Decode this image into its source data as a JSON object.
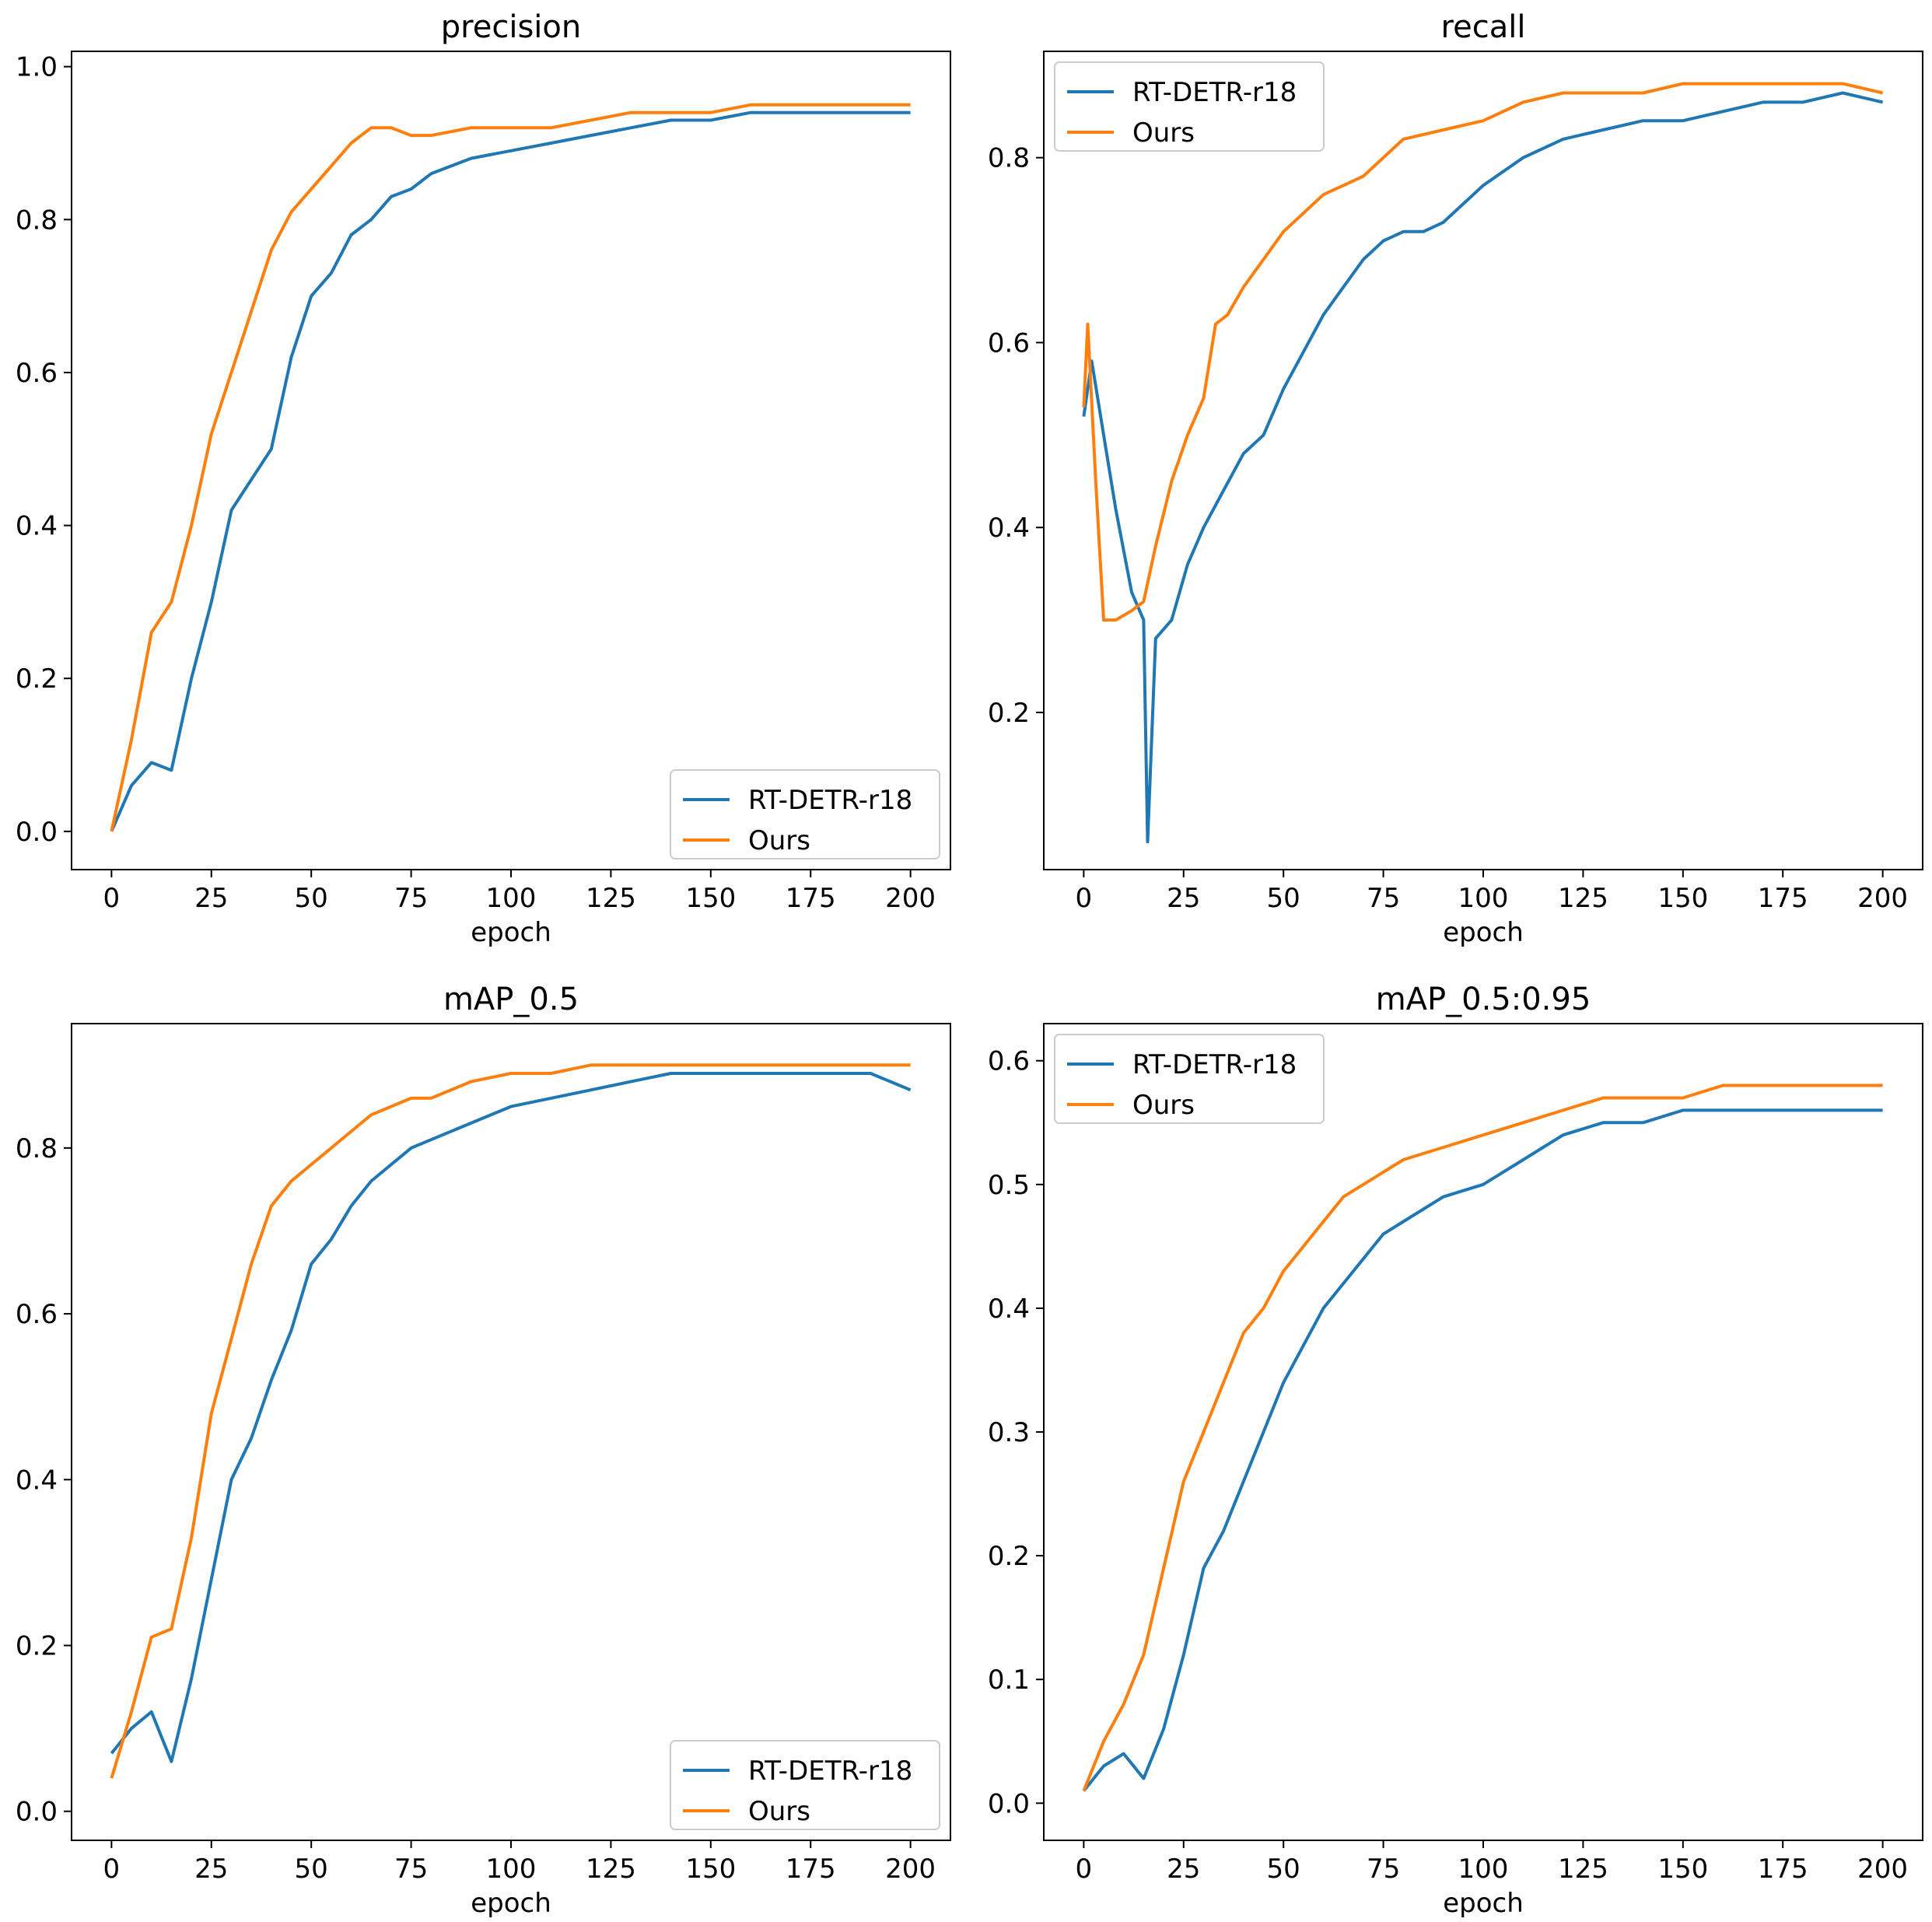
{
  "colors": {
    "rtdetr": "#1f77b4",
    "ours": "#ff7f0e"
  },
  "chart_data": [
    {
      "type": "line",
      "title": "precision",
      "xlabel": "epoch",
      "ylabel": "",
      "xlim": [
        -10,
        210
      ],
      "ylim": [
        -0.05,
        1.02
      ],
      "xticks": [
        0,
        25,
        50,
        75,
        100,
        125,
        150,
        175,
        200
      ],
      "yticks": [
        0.0,
        0.2,
        0.4,
        0.6,
        0.8,
        1.0
      ],
      "ytick_labels": [
        "0.0",
        "0.2",
        "0.4",
        "0.6",
        "0.8",
        "1.0"
      ],
      "legend": "lower right",
      "series": [
        {
          "name": "RT-DETR-r18",
          "x": [
            0,
            5,
            10,
            15,
            20,
            25,
            30,
            35,
            40,
            45,
            50,
            55,
            60,
            65,
            70,
            75,
            80,
            90,
            100,
            110,
            120,
            130,
            140,
            150,
            160,
            170,
            180,
            190,
            200
          ],
          "values": [
            0.0,
            0.06,
            0.09,
            0.08,
            0.2,
            0.3,
            0.42,
            0.46,
            0.5,
            0.62,
            0.7,
            0.73,
            0.78,
            0.8,
            0.83,
            0.84,
            0.86,
            0.88,
            0.89,
            0.9,
            0.91,
            0.92,
            0.93,
            0.93,
            0.94,
            0.94,
            0.94,
            0.94,
            0.94
          ]
        },
        {
          "name": "Ours",
          "x": [
            0,
            5,
            10,
            15,
            20,
            25,
            30,
            35,
            40,
            45,
            50,
            55,
            60,
            65,
            70,
            75,
            80,
            90,
            100,
            110,
            120,
            130,
            140,
            150,
            160,
            170,
            180,
            190,
            200
          ],
          "values": [
            0.0,
            0.12,
            0.26,
            0.3,
            0.4,
            0.52,
            0.6,
            0.68,
            0.76,
            0.81,
            0.84,
            0.87,
            0.9,
            0.92,
            0.92,
            0.91,
            0.91,
            0.92,
            0.92,
            0.92,
            0.93,
            0.94,
            0.94,
            0.94,
            0.95,
            0.95,
            0.95,
            0.95,
            0.95
          ]
        }
      ]
    },
    {
      "type": "line",
      "title": "recall",
      "xlabel": "epoch",
      "ylabel": "",
      "xlim": [
        -10,
        210
      ],
      "ylim": [
        0.03,
        0.915
      ],
      "xticks": [
        0,
        25,
        50,
        75,
        100,
        125,
        150,
        175,
        200
      ],
      "yticks": [
        0.2,
        0.4,
        0.6,
        0.8
      ],
      "ytick_labels": [
        "0.2",
        "0.4",
        "0.6",
        "0.8"
      ],
      "legend": "upper left",
      "series": [
        {
          "name": "RT-DETR-r18",
          "x": [
            0,
            2,
            5,
            8,
            12,
            15,
            16,
            18,
            22,
            26,
            30,
            35,
            40,
            45,
            50,
            55,
            60,
            65,
            70,
            75,
            80,
            85,
            90,
            100,
            110,
            120,
            130,
            140,
            150,
            160,
            170,
            180,
            190,
            200
          ],
          "values": [
            0.52,
            0.58,
            0.5,
            0.42,
            0.33,
            0.3,
            0.06,
            0.28,
            0.3,
            0.36,
            0.4,
            0.44,
            0.48,
            0.5,
            0.55,
            0.59,
            0.63,
            0.66,
            0.69,
            0.71,
            0.72,
            0.72,
            0.73,
            0.77,
            0.8,
            0.82,
            0.83,
            0.84,
            0.84,
            0.85,
            0.86,
            0.86,
            0.87,
            0.86
          ]
        },
        {
          "name": "Ours",
          "x": [
            0,
            1,
            3,
            5,
            8,
            12,
            15,
            18,
            22,
            26,
            30,
            33,
            36,
            40,
            45,
            50,
            55,
            60,
            65,
            70,
            75,
            80,
            90,
            100,
            110,
            120,
            130,
            140,
            150,
            160,
            170,
            180,
            190,
            200
          ],
          "values": [
            0.53,
            0.62,
            0.45,
            0.3,
            0.3,
            0.31,
            0.32,
            0.38,
            0.45,
            0.5,
            0.54,
            0.62,
            0.63,
            0.66,
            0.69,
            0.72,
            0.74,
            0.76,
            0.77,
            0.78,
            0.8,
            0.82,
            0.83,
            0.84,
            0.86,
            0.87,
            0.87,
            0.87,
            0.88,
            0.88,
            0.88,
            0.88,
            0.88,
            0.87
          ]
        }
      ]
    },
    {
      "type": "line",
      "title": "mAP_0.5",
      "xlabel": "epoch",
      "ylabel": "",
      "xlim": [
        -10,
        210
      ],
      "ylim": [
        -0.035,
        0.95
      ],
      "xticks": [
        0,
        25,
        50,
        75,
        100,
        125,
        150,
        175,
        200
      ],
      "yticks": [
        0.0,
        0.2,
        0.4,
        0.6,
        0.8
      ],
      "ytick_labels": [
        "0.0",
        "0.2",
        "0.4",
        "0.6",
        "0.8"
      ],
      "legend": "lower right",
      "series": [
        {
          "name": "RT-DETR-r18",
          "x": [
            0,
            5,
            10,
            15,
            20,
            25,
            30,
            35,
            40,
            45,
            50,
            55,
            60,
            65,
            70,
            75,
            80,
            90,
            100,
            110,
            120,
            130,
            140,
            150,
            160,
            170,
            180,
            190,
            200
          ],
          "values": [
            0.07,
            0.1,
            0.12,
            0.06,
            0.16,
            0.28,
            0.4,
            0.45,
            0.52,
            0.58,
            0.66,
            0.69,
            0.73,
            0.76,
            0.78,
            0.8,
            0.81,
            0.83,
            0.85,
            0.86,
            0.87,
            0.88,
            0.89,
            0.89,
            0.89,
            0.89,
            0.89,
            0.89,
            0.87
          ]
        },
        {
          "name": "Ours",
          "x": [
            0,
            5,
            10,
            15,
            20,
            25,
            30,
            35,
            40,
            45,
            50,
            55,
            60,
            65,
            70,
            75,
            80,
            90,
            100,
            110,
            120,
            130,
            140,
            150,
            160,
            170,
            180,
            190,
            200
          ],
          "values": [
            0.04,
            0.12,
            0.21,
            0.22,
            0.33,
            0.48,
            0.57,
            0.66,
            0.73,
            0.76,
            0.78,
            0.8,
            0.82,
            0.84,
            0.85,
            0.86,
            0.86,
            0.88,
            0.89,
            0.89,
            0.9,
            0.9,
            0.9,
            0.9,
            0.9,
            0.9,
            0.9,
            0.9,
            0.9
          ]
        }
      ]
    },
    {
      "type": "line",
      "title": "mAP_0.5:0.95",
      "xlabel": "epoch",
      "ylabel": "",
      "xlim": [
        -10,
        210
      ],
      "ylim": [
        -0.03,
        0.63
      ],
      "xticks": [
        0,
        25,
        50,
        75,
        100,
        125,
        150,
        175,
        200
      ],
      "yticks": [
        0.0,
        0.1,
        0.2,
        0.3,
        0.4,
        0.5,
        0.6
      ],
      "ytick_labels": [
        "0.0",
        "0.1",
        "0.2",
        "0.3",
        "0.4",
        "0.5",
        "0.6"
      ],
      "legend": "upper left",
      "series": [
        {
          "name": "RT-DETR-r18",
          "x": [
            0,
            5,
            10,
            15,
            20,
            25,
            30,
            35,
            40,
            45,
            50,
            55,
            60,
            65,
            70,
            75,
            80,
            90,
            100,
            110,
            120,
            130,
            140,
            150,
            160,
            170,
            180,
            190,
            200
          ],
          "values": [
            0.01,
            0.03,
            0.04,
            0.02,
            0.06,
            0.12,
            0.19,
            0.22,
            0.26,
            0.3,
            0.34,
            0.37,
            0.4,
            0.42,
            0.44,
            0.46,
            0.47,
            0.49,
            0.5,
            0.52,
            0.54,
            0.55,
            0.55,
            0.56,
            0.56,
            0.56,
            0.56,
            0.56,
            0.56
          ]
        },
        {
          "name": "Ours",
          "x": [
            0,
            5,
            10,
            15,
            20,
            25,
            30,
            35,
            40,
            45,
            50,
            55,
            60,
            65,
            70,
            75,
            80,
            90,
            100,
            110,
            120,
            130,
            140,
            150,
            160,
            170,
            180,
            190,
            200
          ],
          "values": [
            0.01,
            0.05,
            0.08,
            0.12,
            0.19,
            0.26,
            0.3,
            0.34,
            0.38,
            0.4,
            0.43,
            0.45,
            0.47,
            0.49,
            0.5,
            0.51,
            0.52,
            0.53,
            0.54,
            0.55,
            0.56,
            0.57,
            0.57,
            0.57,
            0.58,
            0.58,
            0.58,
            0.58,
            0.58
          ]
        }
      ]
    }
  ]
}
